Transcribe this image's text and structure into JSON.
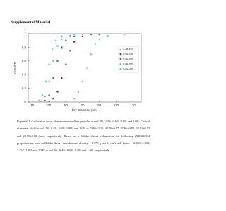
{
  "title": "Supplemental Material",
  "chart_data": {
    "type": "scatter",
    "x_label": "Dry Diameter (nm)",
    "y_label": "CCN/CN",
    "xlim": [
      5,
      140
    ],
    "ylim": [
      0,
      1
    ],
    "xticks": [
      10,
      30,
      50,
      70,
      90,
      110,
      130
    ],
    "yticks": [
      0,
      0.2,
      0.4,
      0.6,
      0.8,
      1
    ],
    "legend": "right",
    "series": [
      {
        "name": "s=0.2%",
        "color": "#8ab4d8",
        "x": [
          50,
          60,
          65,
          70,
          75,
          80,
          85,
          90,
          100,
          120
        ],
        "values": [
          0.01,
          0.05,
          0.15,
          0.3,
          0.5,
          0.7,
          0.85,
          0.92,
          0.97,
          0.99
        ]
      },
      {
        "name": "s=0.4%",
        "color": "#7a2a4a",
        "x": [
          30,
          35,
          40,
          45,
          50,
          55,
          60,
          70,
          90
        ],
        "values": [
          0.01,
          0.05,
          0.15,
          0.35,
          0.55,
          0.75,
          0.88,
          0.96,
          0.99
        ]
      },
      {
        "name": "s=0.6%",
        "color": "#3a62b0",
        "x": [
          25,
          30,
          35,
          40,
          45,
          50,
          60,
          80
        ],
        "values": [
          0.02,
          0.1,
          0.35,
          0.6,
          0.8,
          0.9,
          0.96,
          0.99
        ]
      },
      {
        "name": "s=0.8%",
        "color": "#9aa0a8",
        "x": [
          20,
          25,
          30,
          35,
          40,
          45,
          55,
          70
        ],
        "values": [
          0.01,
          0.08,
          0.3,
          0.6,
          0.82,
          0.92,
          0.97,
          0.99
        ]
      },
      {
        "name": "s=1.0%",
        "color": "#4fc3d8",
        "x": [
          18,
          22,
          26,
          30,
          34,
          38,
          45,
          60
        ],
        "values": [
          0.02,
          0.1,
          0.3,
          0.55,
          0.78,
          0.9,
          0.96,
          0.99
        ]
      }
    ]
  },
  "caption": "Figure S-1. Calibration curve of ammonium sulfate particles at s=0.2%, 0.4%, 0.6%, 0.8% and 1.0%. Critical diameters (dc) for s=0.2%, 0.4%, 0.6%, 0.8% and 1.0% is 74.66±2.15, 48.76±0.57, 37.66±0.85, 32.51±0.73 and 28.59±0.52 (nm), respectively. Based on a Köhler theory calculation, the following (NH4)2SO4 properties are used in Köhler theory calculations: density = 1.770 g cm-3, van't hoff factor = 2.469, 2.394, 2.457, 2.387 and 2.348 at s=0.2%, 0.4%, 0.6%, 0.8% and 1.0%, respectively."
}
